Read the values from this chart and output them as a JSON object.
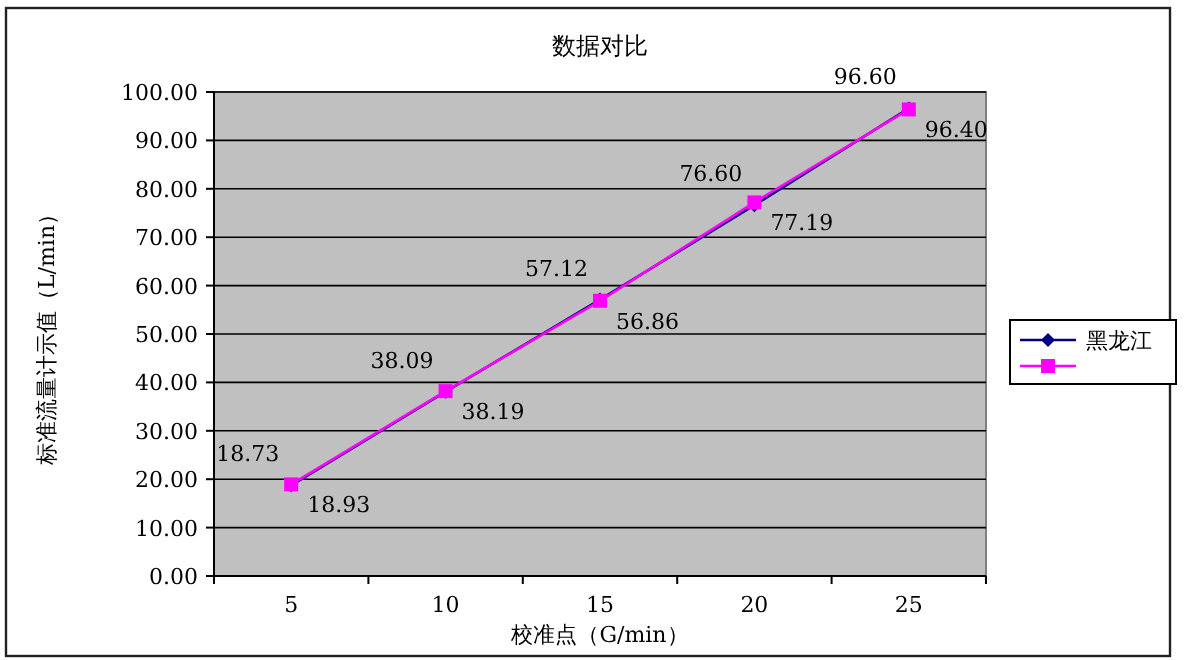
{
  "chart_data": {
    "type": "line",
    "title": "数据对比",
    "xlabel": "校准点（G/min）",
    "ylabel": "标准流量计示值（L/min）",
    "categories": [
      "5",
      "10",
      "15",
      "20",
      "25"
    ],
    "series": [
      {
        "name": "黑龙江",
        "color": "#000080",
        "marker": "diamond",
        "values": [
          18.73,
          38.09,
          57.12,
          76.6,
          96.6
        ],
        "value_labels": [
          "18.73",
          "38.09",
          "57.12",
          "76.60",
          "96.60"
        ]
      },
      {
        "color": "#ff00ff",
        "marker": "square",
        "values": [
          18.93,
          38.19,
          56.86,
          77.19,
          96.4
        ],
        "value_labels": [
          "18.93",
          "38.19",
          "56.86",
          "77.19",
          "96.40"
        ]
      }
    ],
    "ylim": [
      0,
      100
    ],
    "yticks": [
      {
        "value": 0,
        "label": "0.00"
      },
      {
        "value": 10,
        "label": "10.00"
      },
      {
        "value": 20,
        "label": "20.00"
      },
      {
        "value": 30,
        "label": "30.00"
      },
      {
        "value": 40,
        "label": "40.00"
      },
      {
        "value": 50,
        "label": "50.00"
      },
      {
        "value": 60,
        "label": "60.00"
      },
      {
        "value": 70,
        "label": "70.00"
      },
      {
        "value": 80,
        "label": "80.00"
      },
      {
        "value": 90,
        "label": "90.00"
      },
      {
        "value": 100,
        "label": "100.00"
      }
    ],
    "grid": "y",
    "legend": "right"
  }
}
